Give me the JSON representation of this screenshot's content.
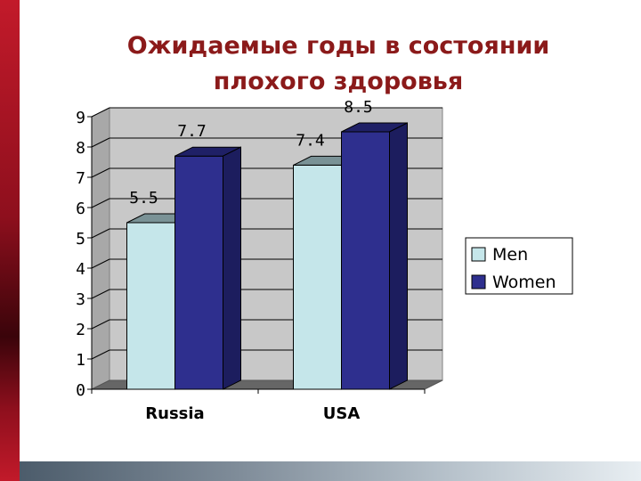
{
  "title_lines": [
    "Ожидаемые годы в состоянии",
    "плохого здоровья"
  ],
  "colors": {
    "men": "#c5e6ea",
    "women": "#2e2f8e",
    "back_wall": "#c8c8c8",
    "side_wall": "#a8a8a8",
    "floor": "#666666"
  },
  "chart_data": {
    "type": "bar",
    "title": "Ожидаемые годы в состоянии плохого здоровья",
    "categories": [
      "Russia",
      "USA"
    ],
    "series": [
      {
        "name": "Men",
        "values": [
          5.5,
          7.4
        ]
      },
      {
        "name": "Women",
        "values": [
          7.7,
          8.5
        ]
      }
    ],
    "data_labels": [
      [
        "5.5",
        "7.4"
      ],
      [
        "7.7",
        "8.5"
      ]
    ],
    "ylim": [
      0,
      9
    ],
    "yticks": [
      "0",
      "1",
      "2",
      "3",
      "4",
      "5",
      "6",
      "7",
      "8",
      "9"
    ],
    "grid": true,
    "legend": "right",
    "style": "3d-column"
  }
}
